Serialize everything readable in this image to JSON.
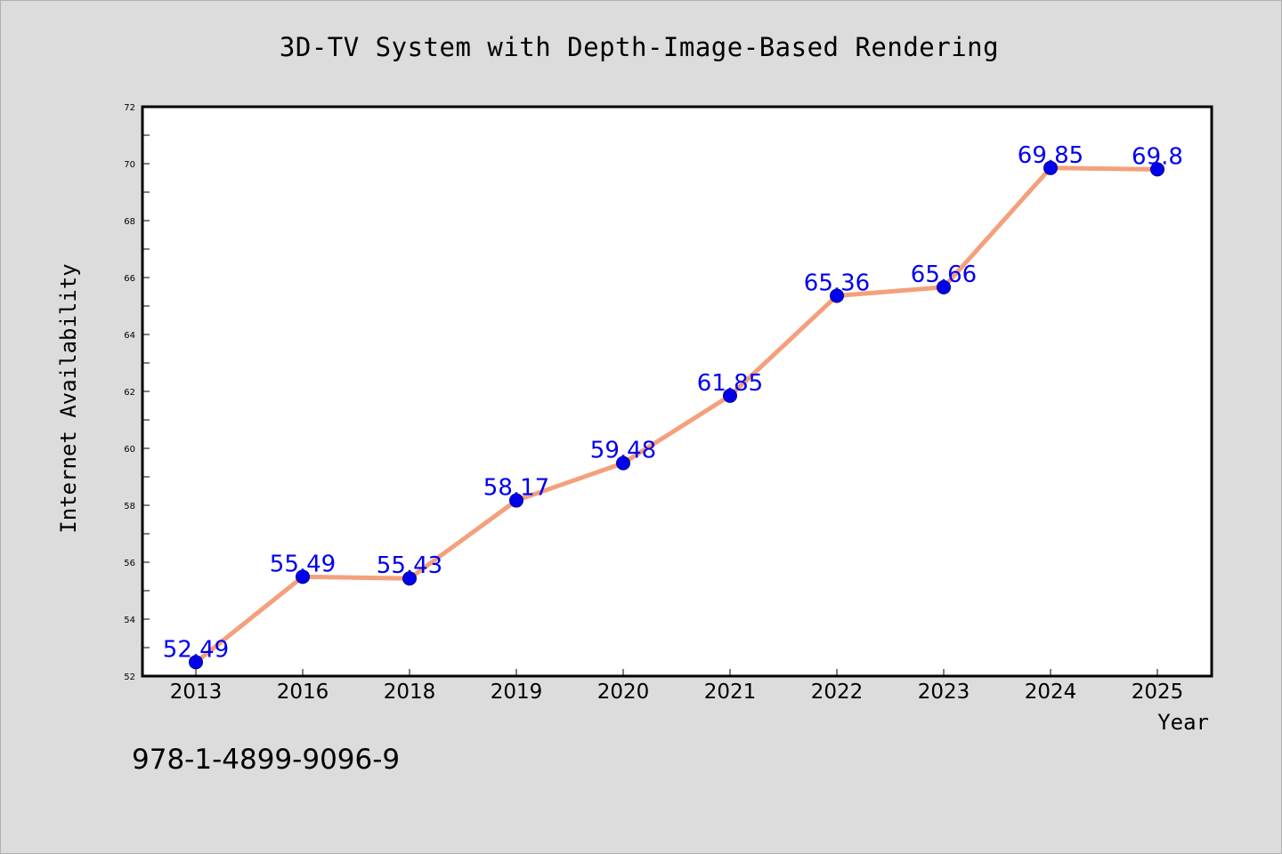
{
  "chart_data": {
    "type": "line",
    "title": "3D-TV System with Depth-Image-Based Rendering",
    "xlabel": "Year",
    "ylabel": "Internet Availability",
    "categories": [
      "2013",
      "2016",
      "2018",
      "2019",
      "2020",
      "2021",
      "2022",
      "2023",
      "2024",
      "2025"
    ],
    "values": [
      52.49,
      55.49,
      55.43,
      58.17,
      59.48,
      61.85,
      65.36,
      65.66,
      69.85,
      69.8
    ],
    "data_labels": [
      "52.49",
      "55.49",
      "55.43",
      "58.17",
      "59.48",
      "61.85",
      "65.36",
      "65.66",
      "69.85",
      "69.8"
    ],
    "ylim": [
      52,
      72
    ],
    "yticks": [
      "52",
      "54",
      "56",
      "58",
      "60",
      "62",
      "64",
      "66",
      "68",
      "70",
      "72"
    ],
    "grid": false,
    "line_color": "#f4a07c",
    "marker_color": "#0000ee",
    "label_color": "#0000ee"
  },
  "footnote": "978-1-4899-9096-9"
}
